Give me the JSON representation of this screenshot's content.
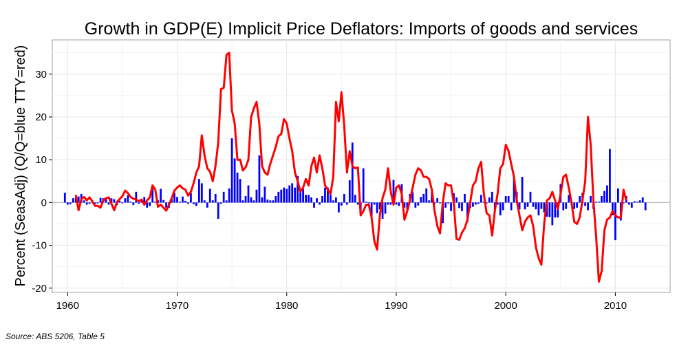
{
  "chart_data": {
    "type": "bar+line",
    "title": "Growth in GDP(E) Implicit Price Deflators: Imports of goods and services",
    "ylabel": "Percent (SeasAdj) (Q/Q=blue TTY=red)",
    "xlabel": "",
    "xlim": [
      1958.6,
      2015.0
    ],
    "ylim": [
      -21.0,
      38.0
    ],
    "x_ticks": [
      1960,
      1970,
      1980,
      1990,
      2000,
      2010
    ],
    "y_ticks": [
      -20,
      -10,
      0,
      10,
      20,
      30
    ],
    "grid": true,
    "colors": {
      "qq": "#0000ff",
      "tty": "#ff0000"
    },
    "qq_series": {
      "name": "Q/Q",
      "start_year": 1959.75,
      "step": 0.25,
      "values": [
        2.3,
        -0.5,
        -0.4,
        1.0,
        1.2,
        1.4,
        2.0,
        0.5,
        -0.5,
        -0.3,
        0.6,
        -0.3,
        -0.2,
        1.1,
        1.0,
        1.2,
        -0.5,
        1.0,
        0.8,
        -0.6,
        0.4,
        -0.2,
        1.0,
        1.7,
        0.2,
        -0.6,
        2.5,
        -0.3,
        0.6,
        1.3,
        -1.2,
        -0.8,
        3.3,
        0.2,
        0.5,
        3.2,
        0.6,
        -1.2,
        -1.2,
        1.1,
        2.3,
        1.3,
        0.2,
        1.4,
        0.4,
        -0.3,
        2.2,
        -0.4,
        -0.8,
        5.5,
        4.5,
        0.5,
        -1.2,
        3.2,
        0.5,
        2.0,
        -3.8,
        -0.3,
        2.5,
        0.5,
        3.3,
        15.0,
        10.3,
        7.0,
        5.5,
        0.5,
        1.5,
        4.0,
        1.2,
        0.5,
        3.0,
        11.0,
        1.2,
        3.7,
        0.7,
        0.5,
        0.5,
        1.5,
        2.5,
        3.0,
        3.5,
        3.2,
        4.0,
        4.5,
        3.5,
        6.2,
        2.5,
        3.2,
        1.8,
        1.8,
        1.2,
        -1.2,
        1.0,
        -0.5,
        1.5,
        3.5,
        3.5,
        1.8,
        0.5,
        1.2,
        -2.3,
        -0.7,
        2.0,
        -0.5,
        5.2,
        14.0,
        1.8,
        -0.5,
        -2.7,
        8.0,
        0.2,
        -0.2,
        -3.2,
        -0.5,
        -2.5,
        -1.6,
        -3.8,
        -2.6,
        -0.5,
        -0.5,
        5.3,
        -0.5,
        -0.8,
        4.3,
        -1.2,
        -1.6,
        2.0,
        2.4,
        -1.2,
        -0.7,
        1.3,
        2.0,
        3.3,
        0.5,
        2.5,
        -0.3,
        1.0,
        -0.2,
        -4.8,
        -1.2,
        -0.2,
        -2.0,
        2.2,
        1.2,
        -1.3,
        -2.0,
        2.0,
        -4.5,
        -1.3,
        -1.0,
        -0.5,
        -0.3,
        1.8,
        0.2,
        -0.2,
        1.2,
        2.5,
        -1.8,
        -0.5,
        -3.0,
        -1.8,
        1.5,
        1.5,
        -1.8,
        6.0,
        2.5,
        -1.6,
        6.0,
        -1.6,
        -1.0,
        2.5,
        -1.0,
        -1.6,
        -3.0,
        -1.5,
        -2.3,
        -3.3,
        -3.4,
        -5.3,
        -3.5,
        -3.5,
        4.3,
        -1.8,
        -1.5,
        1.8,
        -0.5,
        -1.5,
        -1.2,
        1.5,
        2.3,
        -0.8,
        -1.8,
        1.5,
        -1.5,
        0.2,
        0.2,
        1.5,
        2.7,
        4.0,
        12.5,
        -3.0,
        -8.8,
        3.3,
        -4.2,
        -0.2,
        1.5,
        -0.5,
        -1.2,
        0.3,
        0.2,
        0.5,
        1.2,
        -1.8
      ],
      "tty_values": [
        1.8,
        -1.8,
        0.8,
        1.3,
        0.5,
        1.2,
        0.3,
        -0.8,
        -0.8,
        -1.2,
        0.5,
        1.0,
        1.2,
        -0.3,
        -1.8,
        0.1,
        0.8,
        1.5,
        2.8,
        2.2,
        1.3,
        0.9,
        0.7,
        0.3,
        0.7,
        -0.5,
        0.5,
        1.2,
        4.0,
        3.0,
        -1.0,
        -0.5,
        -1.2,
        -1.9,
        -0.5,
        1.0,
        2.8,
        3.5,
        4.0,
        3.3,
        3.0,
        1.6,
        2.5,
        4.5,
        7.0,
        8.5,
        15.7,
        11.0,
        8.0,
        7.2,
        5.0,
        8.5,
        14.0,
        26.5,
        26.8,
        34.5,
        35.0,
        21.5,
        18.5,
        10.0,
        10.0,
        7.5,
        8.2,
        10.0,
        20.0,
        22.0,
        23.5,
        18.5,
        8.5,
        7.0,
        6.5,
        9.0,
        11.0,
        13.0,
        15.5,
        16.0,
        19.5,
        18.5,
        15.0,
        12.0,
        7.0,
        5.0,
        2.5,
        3.5,
        5.5,
        4.0,
        8.5,
        10.5,
        7.0,
        11.0,
        8.0,
        4.0,
        3.0,
        2.0,
        6.0,
        23.5,
        19.0,
        25.8,
        18.0,
        7.0,
        12.0,
        8.5,
        8.0,
        8.2,
        -3.0,
        -2.0,
        -0.5,
        -0.5,
        -3.5,
        -9.0,
        -11.0,
        -3.0,
        1.0,
        3.0,
        8.0,
        2.5,
        -0.5,
        3.5,
        4.0,
        2.0,
        -4.0,
        -2.0,
        0.5,
        3.5,
        6.5,
        8.0,
        7.5,
        6.0,
        6.0,
        5.5,
        3.0,
        -2.0,
        -5.5,
        -7.2,
        0.0,
        4.5,
        4.0,
        4.0,
        0.0,
        -8.5,
        -8.7,
        -7.0,
        -6.0,
        -4.0,
        0.0,
        4.0,
        5.0,
        8.0,
        9.5,
        2.0,
        -2.5,
        -3.0,
        -7.7,
        -2.0,
        2.0,
        8.0,
        9.0,
        13.5,
        12.0,
        9.0,
        6.0,
        0.5,
        -3.0,
        -6.5,
        -4.5,
        -3.5,
        -3.0,
        -5.5,
        -10.5,
        -13.0,
        -14.5,
        -5.0,
        0.5,
        1.0,
        2.5,
        0.5,
        -1.5,
        2.0,
        6.0,
        6.5,
        3.5,
        0.0,
        -4.5,
        -5.0,
        -3.5,
        0.5,
        5.0,
        20.0,
        13.5,
        0.5,
        -8.0,
        -18.5,
        -16.0,
        -6.5,
        -4.0,
        -3.5,
        -2.0,
        -3.0,
        -3.5,
        -3.5,
        3.0,
        0.5
      ]
    }
  },
  "source_note": "Source: ABS 5206, Table 5"
}
